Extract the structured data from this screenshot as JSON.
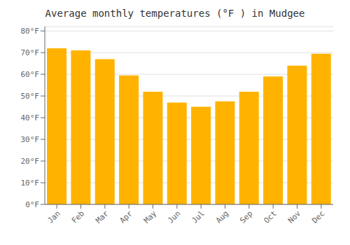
{
  "chart_data": {
    "type": "bar",
    "title": "Average monthly temperatures (°F ) in Mudgee",
    "categories": [
      "Jan",
      "Feb",
      "Mar",
      "Apr",
      "May",
      "Jun",
      "Jul",
      "Aug",
      "Sep",
      "Oct",
      "Nov",
      "Dec"
    ],
    "values": [
      72,
      71,
      67,
      59.5,
      52,
      47,
      45,
      47.5,
      52,
      59,
      64,
      69.5
    ],
    "color": "#FFB300",
    "ylim": [
      0,
      82
    ],
    "yticks": [
      {
        "value": 0,
        "label": "0°F"
      },
      {
        "value": 10,
        "label": "10°F"
      },
      {
        "value": 20,
        "label": "20°F"
      },
      {
        "value": 30,
        "label": "30°F"
      },
      {
        "value": 40,
        "label": "40°F"
      },
      {
        "value": 50,
        "label": "50°F"
      },
      {
        "value": 60,
        "label": "60°F"
      },
      {
        "value": 70,
        "label": "70°F"
      },
      {
        "value": 80,
        "label": "80°F"
      }
    ],
    "grid": true
  }
}
